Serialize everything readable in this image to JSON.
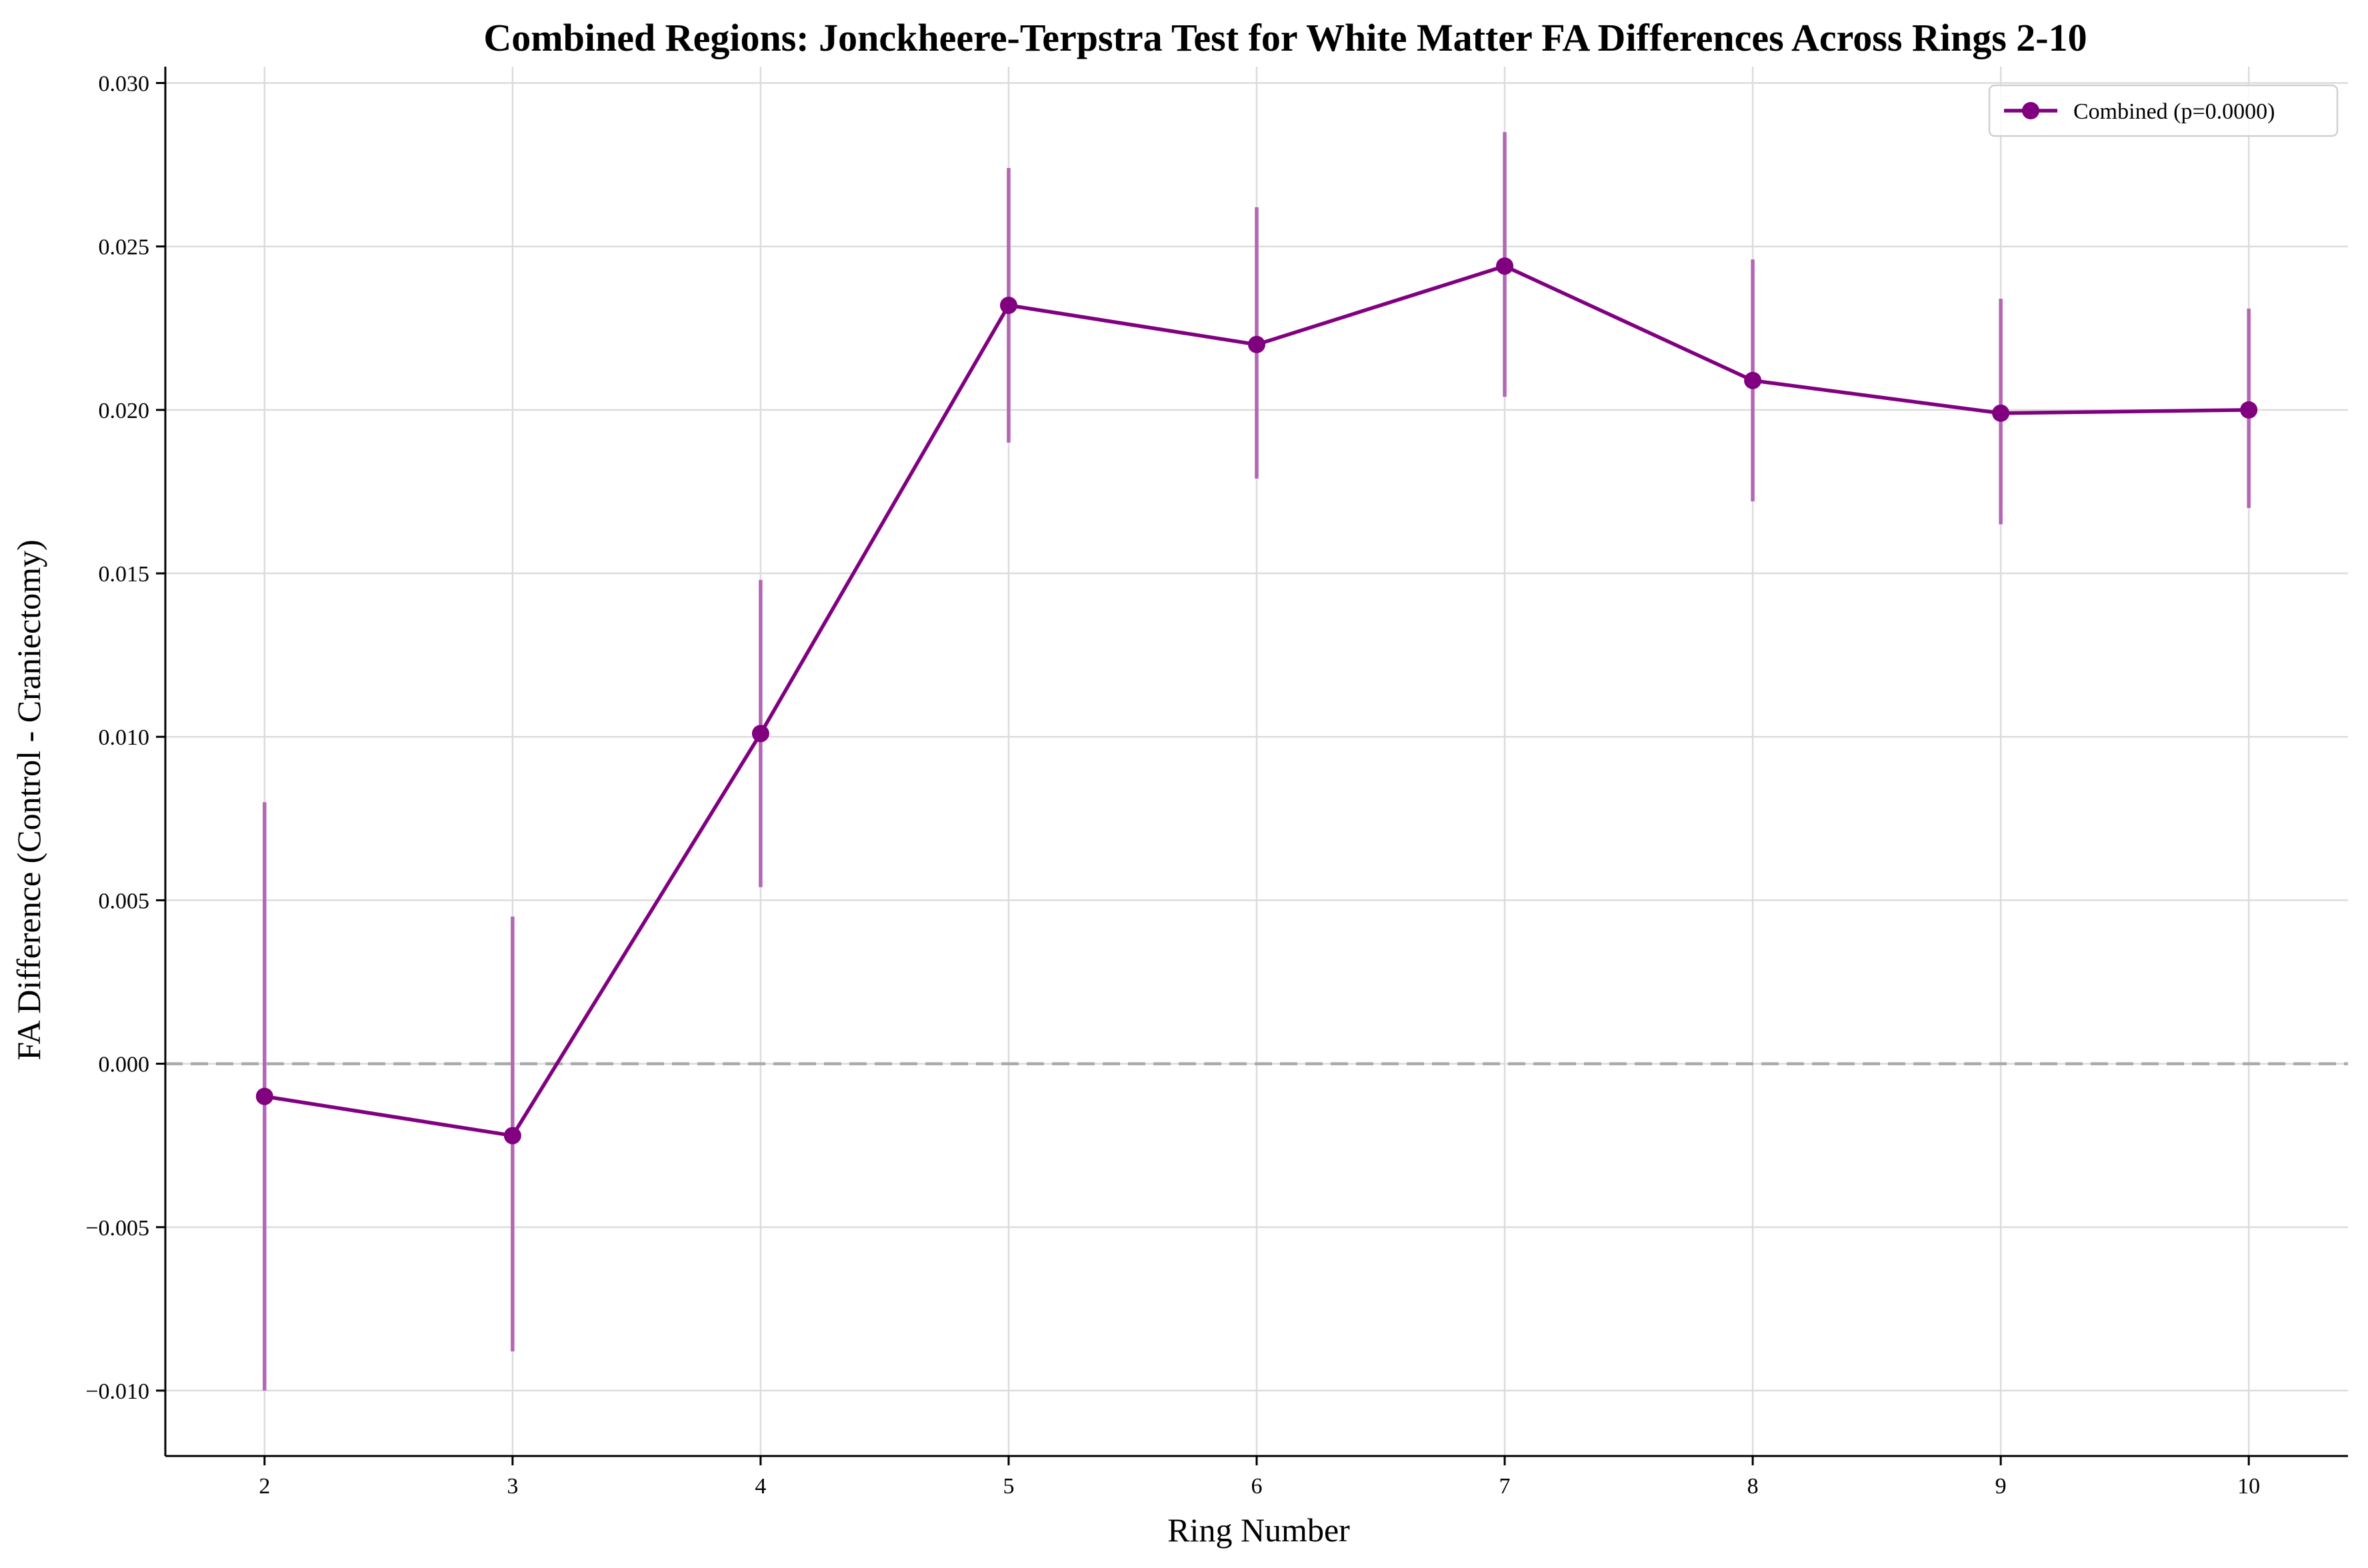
{
  "chart_data": {
    "type": "line",
    "title": "Combined Regions: Jonckheere-Terpstra Test for White Matter FA Differences Across Rings 2-10",
    "xlabel": "Ring Number",
    "ylabel": "FA Difference (Control - Craniectomy)",
    "x": [
      2,
      3,
      4,
      5,
      6,
      7,
      8,
      9,
      10
    ],
    "x_ticks": [
      2,
      3,
      4,
      5,
      6,
      7,
      8,
      9,
      10
    ],
    "xlim": [
      1.6,
      10.4
    ],
    "ylim": [
      -0.012,
      0.0305
    ],
    "y_ticks": [
      -0.01,
      -0.005,
      0.0,
      0.005,
      0.01,
      0.015,
      0.02,
      0.025,
      0.03
    ],
    "y_tick_labels": [
      "−0.010",
      "−0.005",
      "0.000",
      "0.005",
      "0.010",
      "0.015",
      "0.020",
      "0.025",
      "0.030"
    ],
    "grid": true,
    "reference_line": {
      "y": 0.0,
      "style": "dashed",
      "color": "#aaaaaa"
    },
    "legend_position": "top-right",
    "series": [
      {
        "name": "Combined (p=0.0000)",
        "color": "#800080",
        "error_color": "#b565b5",
        "values": [
          -0.001,
          -0.0022,
          0.0101,
          0.0232,
          0.022,
          0.0244,
          0.0209,
          0.0199,
          0.02
        ],
        "error_low": [
          -0.01,
          -0.0088,
          0.0054,
          0.019,
          0.0179,
          0.0204,
          0.0172,
          0.0165,
          0.017
        ],
        "error_high": [
          0.008,
          0.0045,
          0.0148,
          0.0274,
          0.0262,
          0.0285,
          0.0246,
          0.0234,
          0.0231
        ]
      }
    ]
  }
}
